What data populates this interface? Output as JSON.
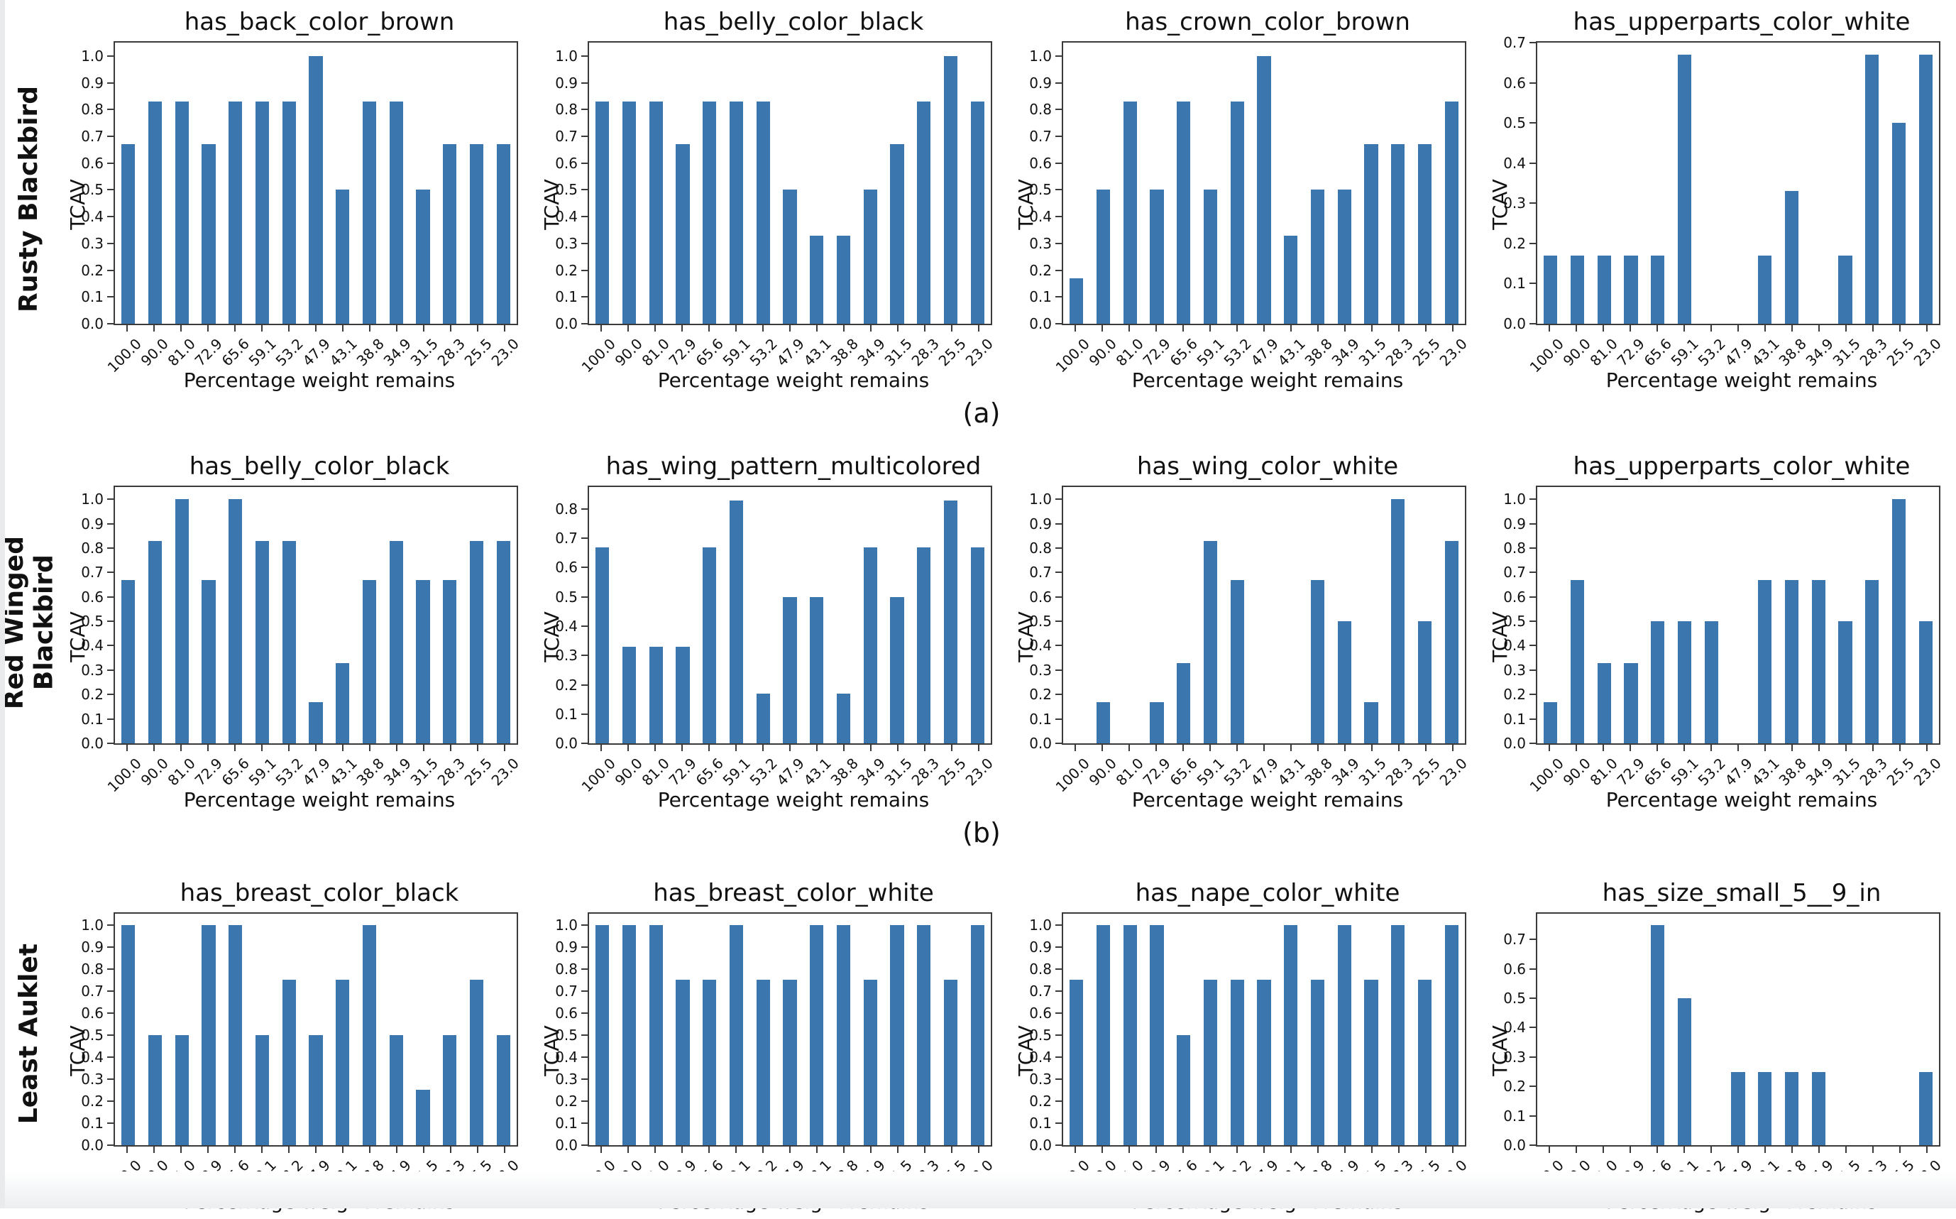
{
  "figure": {
    "bar_color": "#3b76af",
    "axis_color": "#3a3a3a",
    "rows": [
      {
        "label": "Rusty Blackbird",
        "caption": "(a)",
        "chart_indexes": [
          0,
          1,
          2,
          3
        ]
      },
      {
        "label": "Red Winged\nBlackbird",
        "caption": "(b)",
        "chart_indexes": [
          4,
          5,
          6,
          7
        ]
      },
      {
        "label": "Least Auklet",
        "caption": "",
        "chart_indexes": [
          8,
          9,
          10,
          11
        ]
      }
    ]
  },
  "chart_data": {
    "type": "bar",
    "xlabel": "Percentage weight remains",
    "ylabel": "TCAV",
    "grid": false,
    "shared_categories": [
      "100.0",
      "90.0",
      "81.0",
      "72.9",
      "65.6",
      "59.1",
      "53.2",
      "47.9",
      "43.1",
      "38.8",
      "34.9",
      "31.5",
      "28.3",
      "25.5",
      "23.0"
    ],
    "charts": [
      {
        "row": "Rusty Blackbird",
        "title": "has_back_color_brown",
        "yticks": [
          "0.0",
          "0.1",
          "0.2",
          "0.3",
          "0.4",
          "0.5",
          "0.6",
          "0.7",
          "0.8",
          "0.9",
          "1.0"
        ],
        "ylim": [
          0,
          1.05
        ],
        "values": [
          0.67,
          0.83,
          0.83,
          0.67,
          0.83,
          0.83,
          0.83,
          1.0,
          0.5,
          0.83,
          0.83,
          0.5,
          0.67,
          0.67,
          0.67
        ]
      },
      {
        "row": "Rusty Blackbird",
        "title": "has_belly_color_black",
        "yticks": [
          "0.0",
          "0.1",
          "0.2",
          "0.3",
          "0.4",
          "0.5",
          "0.6",
          "0.7",
          "0.8",
          "0.9",
          "1.0"
        ],
        "ylim": [
          0,
          1.05
        ],
        "values": [
          0.83,
          0.83,
          0.83,
          0.67,
          0.83,
          0.83,
          0.83,
          0.5,
          0.33,
          0.33,
          0.5,
          0.67,
          0.83,
          1.0,
          0.83
        ]
      },
      {
        "row": "Rusty Blackbird",
        "title": "has_crown_color_brown",
        "yticks": [
          "0.0",
          "0.1",
          "0.2",
          "0.3",
          "0.4",
          "0.5",
          "0.6",
          "0.7",
          "0.8",
          "0.9",
          "1.0"
        ],
        "ylim": [
          0,
          1.05
        ],
        "values": [
          0.17,
          0.5,
          0.83,
          0.5,
          0.83,
          0.5,
          0.83,
          1.0,
          0.33,
          0.5,
          0.5,
          0.67,
          0.67,
          0.67,
          0.83
        ]
      },
      {
        "row": "Rusty Blackbird",
        "title": "has_upperparts_color_white",
        "yticks": [
          "0.0",
          "0.1",
          "0.2",
          "0.3",
          "0.4",
          "0.5",
          "0.6",
          "0.7"
        ],
        "ylim": [
          0,
          0.7
        ],
        "values": [
          0.17,
          0.17,
          0.17,
          0.17,
          0.17,
          0.67,
          0,
          0,
          0.17,
          0.33,
          0,
          0.17,
          0.67,
          0.5,
          0.67
        ]
      },
      {
        "row": "Red Winged Blackbird",
        "title": "has_belly_color_black",
        "yticks": [
          "0.0",
          "0.1",
          "0.2",
          "0.3",
          "0.4",
          "0.5",
          "0.6",
          "0.7",
          "0.8",
          "0.9",
          "1.0"
        ],
        "ylim": [
          0,
          1.05
        ],
        "values": [
          0.67,
          0.83,
          1.0,
          0.67,
          1.0,
          0.83,
          0.83,
          0.17,
          0.33,
          0.67,
          0.83,
          0.67,
          0.67,
          0.83,
          0.83
        ]
      },
      {
        "row": "Red Winged Blackbird",
        "title": "has_wing_pattern_multicolored",
        "yticks": [
          "0.0",
          "0.1",
          "0.2",
          "0.3",
          "0.4",
          "0.5",
          "0.6",
          "0.7",
          "0.8"
        ],
        "ylim": [
          0,
          0.875
        ],
        "values": [
          0.67,
          0.33,
          0.33,
          0.33,
          0.67,
          0.83,
          0.17,
          0.5,
          0.5,
          0.17,
          0.67,
          0.5,
          0.67,
          0.83,
          0.67
        ]
      },
      {
        "row": "Red Winged Blackbird",
        "title": "has_wing_color_white",
        "yticks": [
          "0.0",
          "0.1",
          "0.2",
          "0.3",
          "0.4",
          "0.5",
          "0.6",
          "0.7",
          "0.8",
          "0.9",
          "1.0"
        ],
        "ylim": [
          0,
          1.05
        ],
        "values": [
          0,
          0.17,
          0,
          0.17,
          0.33,
          0.83,
          0.67,
          0,
          0,
          0.67,
          0.5,
          0.17,
          1.0,
          0.5,
          0.83
        ]
      },
      {
        "row": "Red Winged Blackbird",
        "title": "has_upperparts_color_white",
        "yticks": [
          "0.0",
          "0.1",
          "0.2",
          "0.3",
          "0.4",
          "0.5",
          "0.6",
          "0.7",
          "0.8",
          "0.9",
          "1.0"
        ],
        "ylim": [
          0,
          1.05
        ],
        "values": [
          0.17,
          0.67,
          0.33,
          0.33,
          0.5,
          0.5,
          0.5,
          0,
          0.67,
          0.67,
          0.67,
          0.5,
          0.67,
          1.0,
          0.5
        ]
      },
      {
        "row": "Least Auklet",
        "title": "has_breast_color_black",
        "yticks": [
          "0.0",
          "0.1",
          "0.2",
          "0.3",
          "0.4",
          "0.5",
          "0.6",
          "0.7",
          "0.8",
          "0.9",
          "1.0"
        ],
        "ylim": [
          0,
          1.05
        ],
        "values": [
          1.0,
          0.5,
          0.5,
          1.0,
          1.0,
          0.5,
          0.75,
          0.5,
          0.75,
          1.0,
          0.5,
          0.25,
          0.5,
          0.75,
          0.5
        ]
      },
      {
        "row": "Least Auklet",
        "title": "has_breast_color_white",
        "yticks": [
          "0.0",
          "0.1",
          "0.2",
          "0.3",
          "0.4",
          "0.5",
          "0.6",
          "0.7",
          "0.8",
          "0.9",
          "1.0"
        ],
        "ylim": [
          0,
          1.05
        ],
        "values": [
          1.0,
          1.0,
          1.0,
          0.75,
          0.75,
          1.0,
          0.75,
          0.75,
          1.0,
          1.0,
          0.75,
          1.0,
          1.0,
          0.75,
          1.0
        ]
      },
      {
        "row": "Least Auklet",
        "title": "has_nape_color_white",
        "yticks": [
          "0.0",
          "0.1",
          "0.2",
          "0.3",
          "0.4",
          "0.5",
          "0.6",
          "0.7",
          "0.8",
          "0.9",
          "1.0"
        ],
        "ylim": [
          0,
          1.05
        ],
        "values": [
          0.75,
          1.0,
          1.0,
          1.0,
          0.5,
          0.75,
          0.75,
          0.75,
          1.0,
          0.75,
          1.0,
          0.75,
          1.0,
          0.75,
          1.0
        ]
      },
      {
        "row": "Least Auklet",
        "title": "has_size_small_5__9_in",
        "yticks": [
          "0.0",
          "0.1",
          "0.2",
          "0.3",
          "0.4",
          "0.5",
          "0.6",
          "0.7"
        ],
        "ylim": [
          0,
          0.7875
        ],
        "values": [
          0,
          0,
          0,
          0,
          0.75,
          0.5,
          0,
          0.25,
          0.25,
          0.25,
          0.25,
          0,
          0,
          0,
          0.25
        ]
      }
    ]
  }
}
